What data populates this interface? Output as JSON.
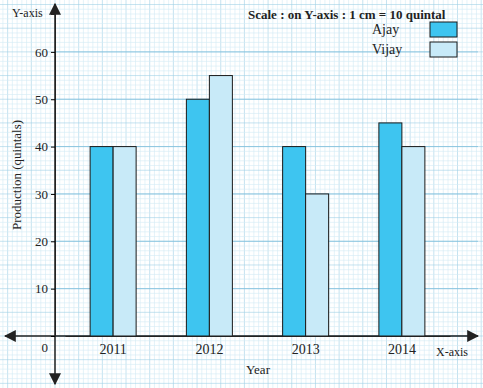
{
  "chart_data": {
    "type": "bar",
    "title": "Scale : on Y-axis : 1 cm = 10 quintal",
    "x_label": "Year",
    "y_label": "Production (quintals)",
    "annotations": [
      "Y-axis",
      "X-axis"
    ],
    "categories": [
      "2011",
      "2012",
      "2013",
      "2014"
    ],
    "series": [
      {
        "name": "Ajay",
        "color": "#3ec5f0",
        "values": [
          40,
          50,
          40,
          45
        ]
      },
      {
        "name": "Vijay",
        "color": "#c8eaf8",
        "values": [
          40,
          55,
          30,
          40
        ]
      }
    ],
    "ylim": [
      0,
      68
    ],
    "yticks": [
      0,
      10,
      20,
      30,
      40,
      50,
      60
    ],
    "grid": true,
    "legend": "top-right"
  }
}
